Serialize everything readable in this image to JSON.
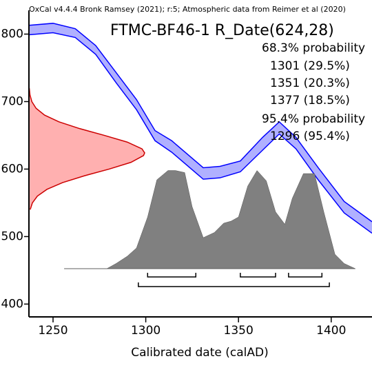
{
  "chart_data": {
    "type": "calibration",
    "note": "OxCal v4.4.4 Bronk Ramsey (2021); r:5; Atmospheric data from Reimer et al (2020)",
    "title": "FTMC-BF46-1 R_Date(624,28)",
    "x_label": "Calibrated date (calAD)",
    "xlim": [
      1237,
      1422
    ],
    "ylim": [
      381,
      825
    ],
    "xticks": [
      1250,
      1300,
      1350,
      1400
    ],
    "yticks": [
      400,
      500,
      600,
      700,
      800
    ],
    "curve": {
      "color": "#0000ff",
      "fill": "#b0b0ff",
      "x": [
        1237,
        1250,
        1262,
        1273,
        1284,
        1295,
        1305,
        1314,
        1331,
        1340,
        1351,
        1363,
        1372,
        1381,
        1393,
        1407,
        1422
      ],
      "upper": [
        813,
        816,
        808,
        783,
        743,
        703,
        657,
        642,
        602,
        604,
        612,
        647,
        670,
        647,
        602,
        552,
        522
      ],
      "lower": [
        799,
        802,
        795,
        770,
        728,
        688,
        642,
        625,
        585,
        587,
        596,
        628,
        652,
        630,
        584,
        535,
        505
      ]
    },
    "radiocarbon": {
      "color": "#cc0000",
      "fill": "#ffb0b0",
      "bp": [
        540,
        550,
        560,
        570,
        580,
        590,
        600,
        610,
        620,
        624,
        630,
        640,
        650,
        660,
        670,
        680,
        690,
        700,
        710,
        720
      ],
      "density": [
        0.011,
        0.03,
        0.073,
        0.156,
        0.291,
        0.478,
        0.693,
        0.882,
        0.99,
        1,
        0.977,
        0.849,
        0.65,
        0.438,
        0.259,
        0.135,
        0.062,
        0.025,
        0.009,
        0.003
      ]
    },
    "posterior": {
      "color": "#808080",
      "x": [
        1256,
        1279,
        1284,
        1290,
        1295,
        1301,
        1306,
        1312,
        1316,
        1321,
        1325,
        1331,
        1337,
        1342,
        1346,
        1350,
        1355,
        1360,
        1365,
        1370,
        1375,
        1379,
        1385,
        1391,
        1396,
        1402,
        1407,
        1413
      ],
      "density": [
        0,
        0,
        0.05,
        0.12,
        0.2,
        0.5,
        0.86,
        0.95,
        0.95,
        0.93,
        0.6,
        0.3,
        0.35,
        0.44,
        0.46,
        0.5,
        0.8,
        0.95,
        0.85,
        0.55,
        0.43,
        0.68,
        0.92,
        0.92,
        0.55,
        0.14,
        0.05,
        0
      ]
    },
    "prob68": {
      "label": "68.3% probability",
      "ranges": [
        {
          "from": 1301,
          "to": 1327,
          "label": "1301 (29.5%)"
        },
        {
          "from": 1351,
          "to": 1370,
          "label": "1351 (20.3%)"
        },
        {
          "from": 1377,
          "to": 1395,
          "label": "1377 (18.5%)"
        }
      ]
    },
    "prob95": {
      "label": "95.4% probability",
      "ranges": [
        {
          "from": 1296,
          "to": 1399,
          "label": "1296 (95.4%)"
        }
      ]
    }
  }
}
